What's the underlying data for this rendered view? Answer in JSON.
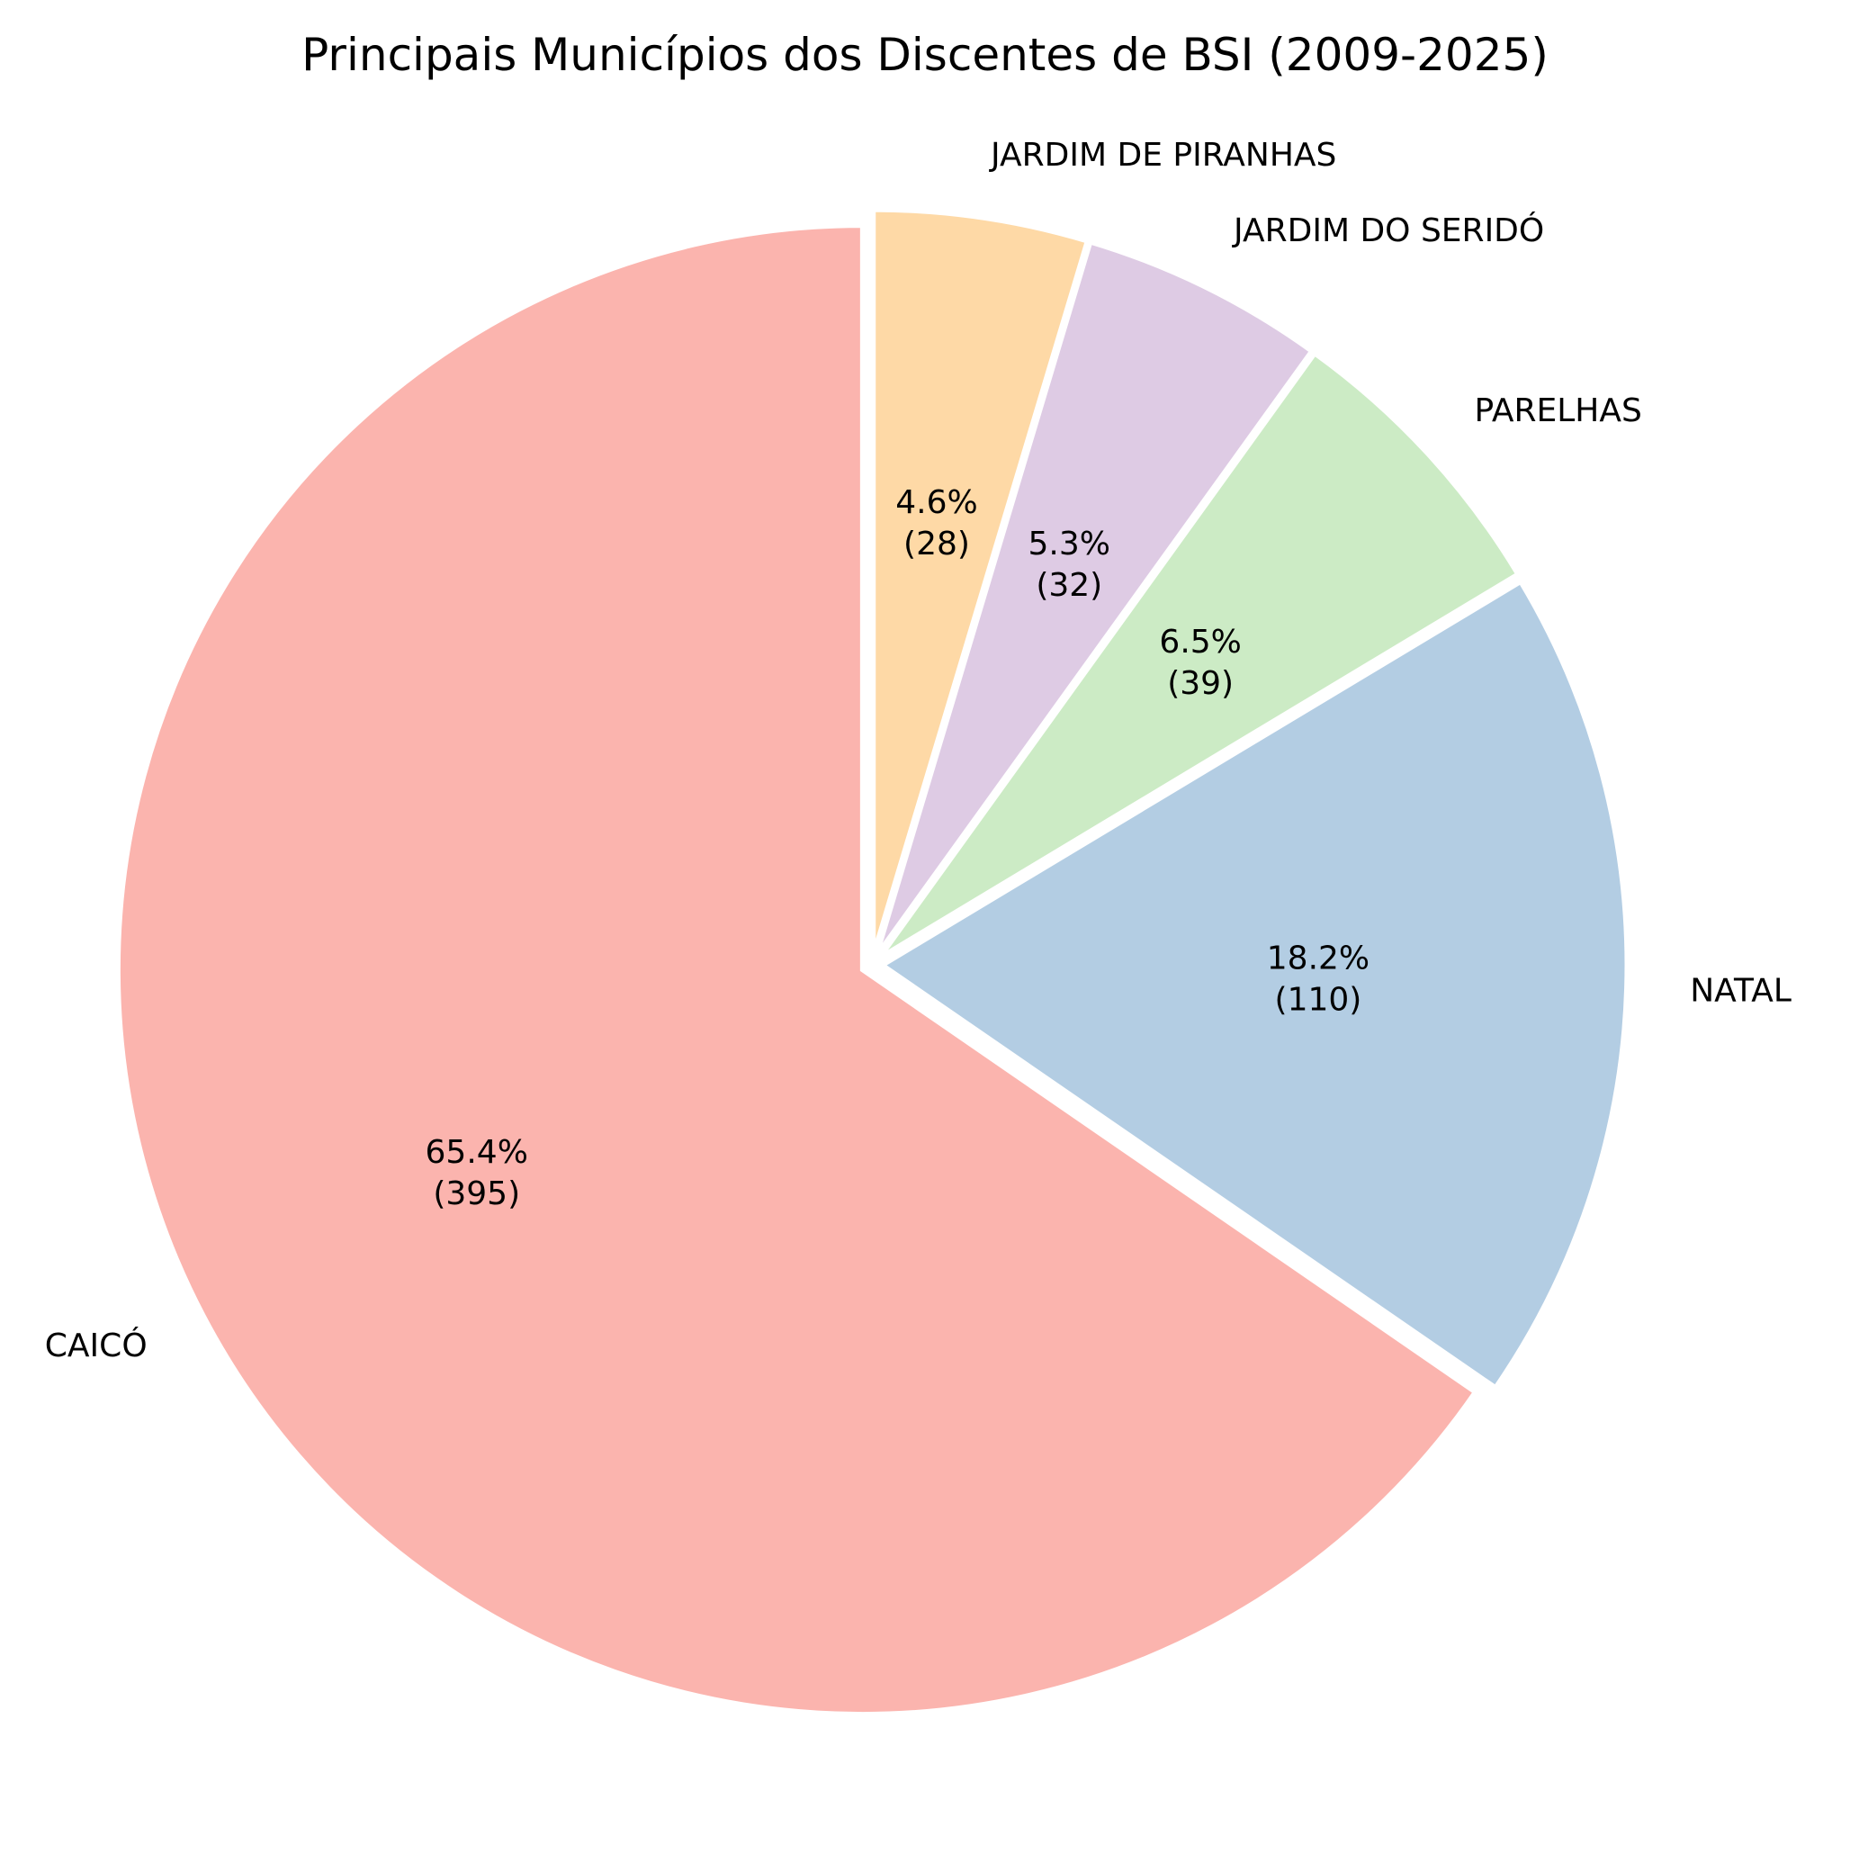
{
  "chart_data": {
    "type": "pie",
    "title": "Principais Municípios dos Discentes de BSI (2009-2025)",
    "start_angle_deg": 90,
    "direction": "clockwise",
    "slices": [
      {
        "label": "JARDIM DE PIRANHAS",
        "value": 28,
        "percent_label": "4.6%",
        "count_label": "(28)",
        "color": "#fed9a6"
      },
      {
        "label": "JARDIM DO SERIDÓ",
        "value": 32,
        "percent_label": "5.3%",
        "count_label": "(32)",
        "color": "#decbe4"
      },
      {
        "label": "PARELHAS",
        "value": 39,
        "percent_label": "6.5%",
        "count_label": "(39)",
        "color": "#ccebc5"
      },
      {
        "label": "NATAL",
        "value": 110,
        "percent_label": "18.2%",
        "count_label": "(110)",
        "color": "#b3cde3"
      },
      {
        "label": "CAICÓ",
        "value": 395,
        "percent_label": "65.4%",
        "count_label": "(395)",
        "color": "#fbb4ae"
      }
    ]
  }
}
